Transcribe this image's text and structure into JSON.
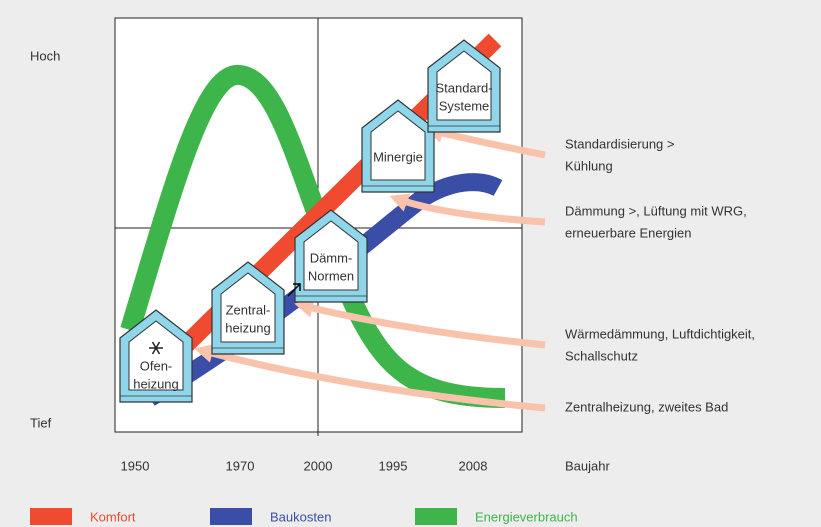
{
  "diagram": {
    "y_labels": {
      "high": "Hoch",
      "low": "Tief"
    },
    "x_labels": [
      "1950",
      "1970",
      "2000",
      "1995",
      "2008"
    ],
    "x_title": "Baujahr",
    "houses": [
      {
        "lines": [
          "Ofen-",
          "heizung"
        ]
      },
      {
        "lines": [
          "Zentral-",
          "heizung"
        ]
      },
      {
        "lines": [
          "Dämm-",
          "Normen"
        ]
      },
      {
        "lines": [
          "Minergie"
        ]
      },
      {
        "lines": [
          "Standard-",
          "Systeme"
        ]
      }
    ],
    "annotations": [
      {
        "lines": [
          "Standardisierung >",
          "Kühlung"
        ]
      },
      {
        "lines": [
          "Dämmung >, Lüftung mit WRG,",
          "erneuerbare Energien"
        ]
      },
      {
        "lines": [
          "Wärmedämmung, Luftdichtigkeit,",
          "Schallschutz"
        ]
      },
      {
        "lines": [
          "Zentralheizung, zweites Bad"
        ]
      }
    ],
    "legend": [
      {
        "name": "Komfort",
        "color": "#f04a30"
      },
      {
        "name": "Baukosten",
        "color": "#3a4ea8"
      },
      {
        "name": "Energieverbrauch",
        "color": "#3db54a"
      }
    ]
  }
}
